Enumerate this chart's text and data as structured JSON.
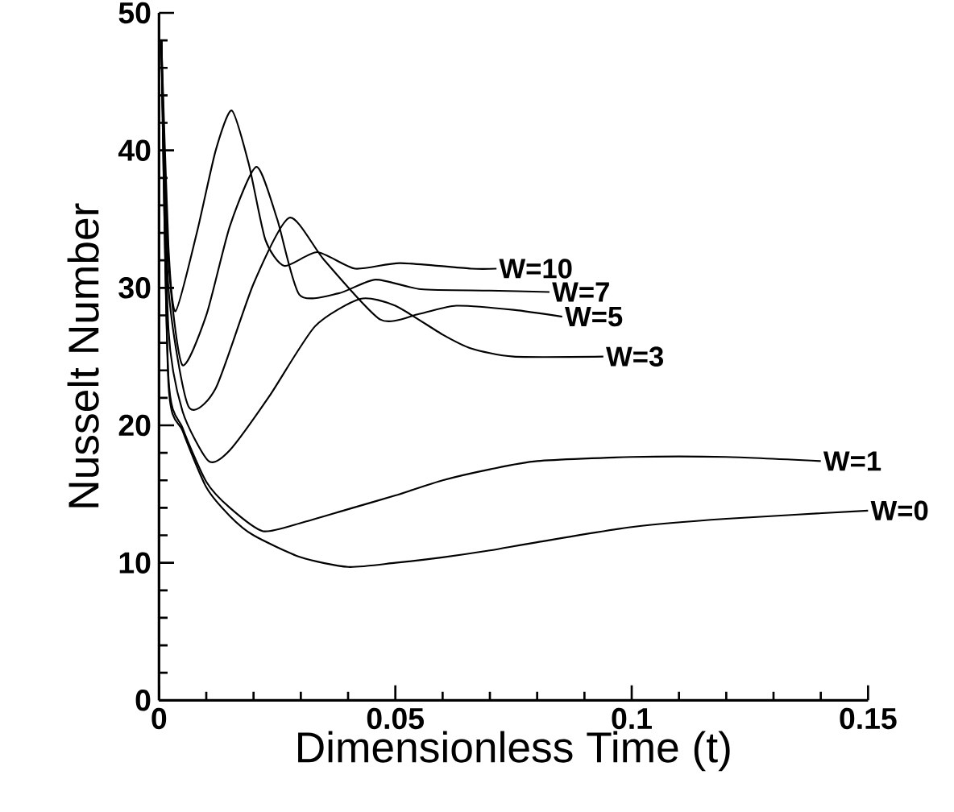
{
  "chart_data": {
    "type": "line",
    "xlabel": "Dimensionless Time (t)",
    "ylabel": "Nusselt Number",
    "xlim": [
      0,
      0.15
    ],
    "ylim": [
      0,
      50
    ],
    "xticks": [
      0,
      0.05,
      0.1,
      0.15
    ],
    "yticks": [
      0,
      10,
      20,
      30,
      40,
      50
    ],
    "grid": false,
    "legend": false,
    "marker": "none",
    "line_style": "solid",
    "series": [
      {
        "name": "W=10",
        "color": "#000000",
        "x": [
          0.0005,
          0.002,
          0.0035,
          0.008,
          0.012,
          0.0154,
          0.019,
          0.0225,
          0.0265,
          0.0335,
          0.0415,
          0.051,
          0.066,
          0.0714
        ],
        "values": [
          48,
          33,
          28.3,
          34,
          40,
          42.9,
          39,
          33.5,
          31.6,
          32.6,
          31.4,
          31.8,
          31.4,
          31.4
        ]
      },
      {
        "name": "W=7",
        "color": "#000000",
        "x": [
          0.0005,
          0.002,
          0.0049,
          0.01,
          0.015,
          0.0206,
          0.025,
          0.0297,
          0.038,
          0.0458,
          0.0554,
          0.07,
          0.0826
        ],
        "values": [
          48,
          32,
          24.4,
          28,
          34.5,
          38.8,
          35,
          29.5,
          29.6,
          30.6,
          29.9,
          29.8,
          29.7
        ]
      },
      {
        "name": "W=5",
        "color": "#000000",
        "x": [
          0.0005,
          0.002,
          0.0062,
          0.012,
          0.02,
          0.0276,
          0.035,
          0.0468,
          0.055,
          0.0629,
          0.075,
          0.0853
        ],
        "values": [
          48,
          30,
          21.4,
          22.7,
          30.3,
          35.1,
          32,
          27.7,
          28.1,
          28.7,
          28.4,
          27.9
        ]
      },
      {
        "name": "W=3",
        "color": "#000000",
        "x": [
          0.0005,
          0.002,
          0.005,
          0.0105,
          0.015,
          0.0233,
          0.033,
          0.0426,
          0.05,
          0.06,
          0.066,
          0.075,
          0.094
        ],
        "values": [
          48,
          27,
          21,
          17.4,
          18.2,
          22.1,
          27.2,
          29.2,
          28.7,
          26.6,
          25.6,
          25.0,
          25.0
        ]
      },
      {
        "name": "W=1",
        "color": "#000000",
        "x": [
          0.0005,
          0.002,
          0.005,
          0.01,
          0.015,
          0.022,
          0.03,
          0.04,
          0.05,
          0.06,
          0.07,
          0.08,
          0.1,
          0.12,
          0.14
        ],
        "values": [
          48,
          23.5,
          19.8,
          15.9,
          14.0,
          12.3,
          12.9,
          13.9,
          14.9,
          16,
          16.8,
          17.4,
          17.7,
          17.7,
          17.4
        ]
      },
      {
        "name": "W=0",
        "color": "#000000",
        "x": [
          0.0005,
          0.002,
          0.005,
          0.01,
          0.015,
          0.02,
          0.03,
          0.04,
          0.05,
          0.06,
          0.07,
          0.08,
          0.1,
          0.12,
          0.15
        ],
        "values": [
          48,
          23,
          19.6,
          15.5,
          13.4,
          12,
          10.4,
          9.7,
          10.0,
          10.4,
          10.9,
          11.5,
          12.6,
          13.2,
          13.8
        ]
      }
    ]
  }
}
